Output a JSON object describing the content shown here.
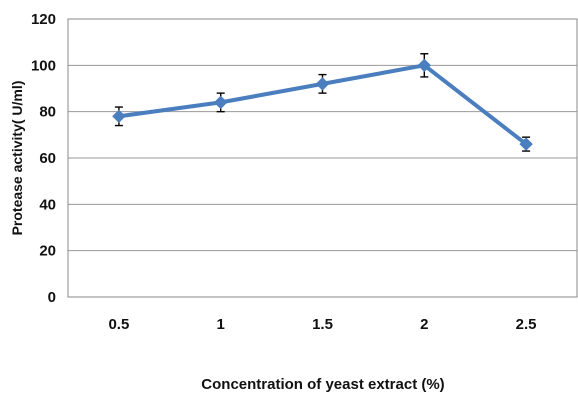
{
  "chart_data": {
    "type": "line",
    "x": [
      "0.5",
      "1",
      "1.5",
      "2",
      "2.5"
    ],
    "series": [
      {
        "values": [
          78,
          84,
          92,
          100,
          66
        ],
        "errors": [
          4,
          4,
          4,
          5,
          3
        ],
        "color": "#4a7ebf"
      }
    ],
    "xlabel": "Concentration of yeast extract (%)",
    "ylabel": "Protease activity( U/ml)",
    "ylim": [
      0,
      120
    ],
    "yticks": [
      "0",
      "20",
      "40",
      "60",
      "80",
      "100",
      "120"
    ],
    "grid": true,
    "legend": "none"
  }
}
